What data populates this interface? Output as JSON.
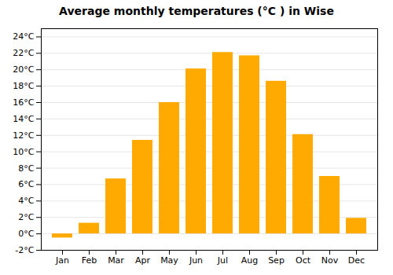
{
  "chart_data": {
    "type": "bar",
    "title": "Average monthly temperatures (°C ) in Wise",
    "categories": [
      "Jan",
      "Feb",
      "Mar",
      "Apr",
      "May",
      "Jun",
      "Jul",
      "Aug",
      "Sep",
      "Oct",
      "Nov",
      "Dec"
    ],
    "values": [
      -0.5,
      1.3,
      6.7,
      11.4,
      16.0,
      20.1,
      22.1,
      21.7,
      18.6,
      12.1,
      7.0,
      1.9
    ],
    "color": "#FFAA00",
    "ylim": [
      -2,
      25
    ],
    "yticks": [
      {
        "value": -2,
        "label": "-2°C"
      },
      {
        "value": 0,
        "label": "0°C"
      },
      {
        "value": 2,
        "label": "2°C"
      },
      {
        "value": 4,
        "label": "4°C"
      },
      {
        "value": 6,
        "label": "6°C"
      },
      {
        "value": 8,
        "label": "8°C"
      },
      {
        "value": 10,
        "label": "10°C"
      },
      {
        "value": 12,
        "label": "12°C"
      },
      {
        "value": 14,
        "label": "14°C"
      },
      {
        "value": 16,
        "label": "16°C"
      },
      {
        "value": 18,
        "label": "18°C"
      },
      {
        "value": 20,
        "label": "20°C"
      },
      {
        "value": 22,
        "label": "22°C"
      },
      {
        "value": 24,
        "label": "24°C"
      }
    ],
    "grid": true
  }
}
